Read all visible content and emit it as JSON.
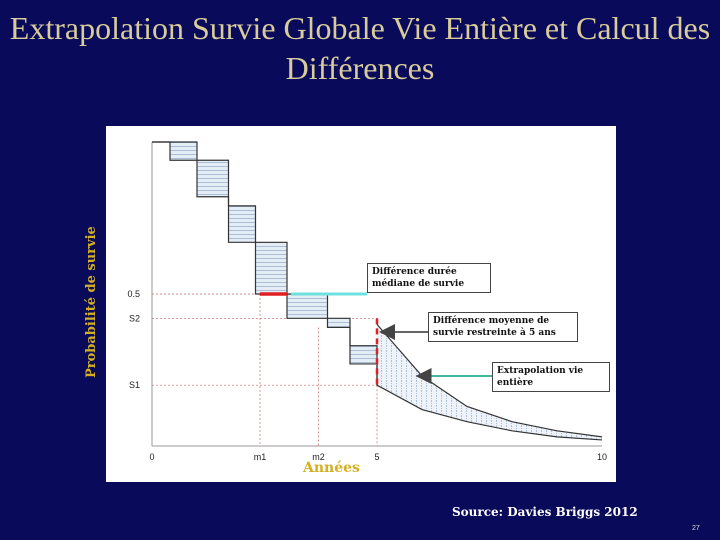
{
  "title": "Extrapolation Survie Globale Vie Entière et Calcul des Différences",
  "y_axis_label": "Probabilité de survie",
  "x_axis_label": "Années",
  "source": "Source: Davies Briggs 2012",
  "page_number": "27",
  "annotations": {
    "median_difference": "Différence durée médiane de survie",
    "restricted_mean_difference": "Différence moyenne de survie restreinte à 5 ans",
    "lifetime_extrapolation": "Extrapolation vie entière"
  },
  "chart_data": {
    "type": "line",
    "x_ticks": [
      "0",
      "m1",
      "m2",
      "5",
      "10"
    ],
    "y_ticks": [
      "0.5",
      "S2",
      "S1"
    ],
    "xlim": [
      0,
      10
    ],
    "ylim": [
      0,
      1
    ],
    "series": [
      {
        "x": [
          0,
          0.4,
          1.7,
          2.3,
          3.0,
          3.9,
          4.4,
          5.0
        ],
        "y": [
          1.0,
          0.94,
          0.79,
          0.67,
          0.5,
          0.39,
          0.27,
          0.2
        ]
      },
      {
        "x": [
          0,
          1.0,
          1.7,
          2.3,
          3.0,
          4.4,
          5.0
        ],
        "y": [
          1.0,
          0.82,
          0.67,
          0.5,
          0.42,
          0.33,
          0.2
        ]
      },
      {
        "x": [
          5,
          6,
          7,
          8,
          9,
          10
        ],
        "y": [
          0.4,
          0.23,
          0.13,
          0.08,
          0.05,
          0.03
        ]
      },
      {
        "x": [
          5,
          6,
          7,
          8,
          9,
          10
        ],
        "y": [
          0.2,
          0.12,
          0.08,
          0.05,
          0.03,
          0.02
        ]
      }
    ],
    "grid": false,
    "colors": {
      "median_marker": "#e02020",
      "median_arrow": "#6ee0e0",
      "restricted_arrow": "#666666",
      "lifetime_arrow": "#40b8a0"
    }
  }
}
